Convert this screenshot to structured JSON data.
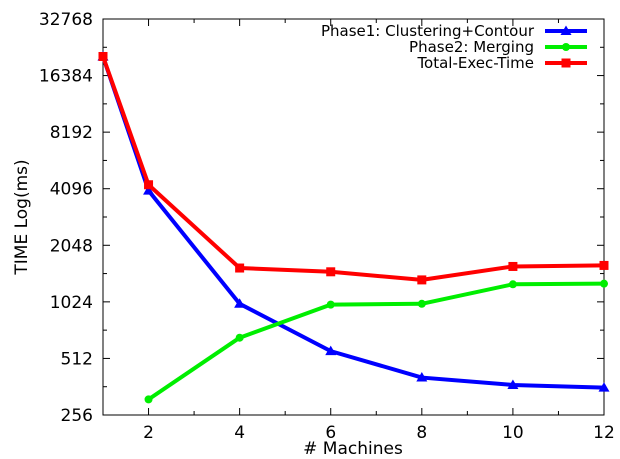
{
  "chart_data": {
    "type": "line",
    "xlabel": "# Machines",
    "ylabel": "TIME Log(ms)",
    "x_scale": "linear",
    "y_scale": "log2",
    "xlim": [
      1,
      12
    ],
    "ylim": [
      256,
      32768
    ],
    "x_ticks": [
      2,
      4,
      6,
      8,
      10,
      12
    ],
    "y_ticks": [
      256,
      512,
      1024,
      2048,
      4096,
      8192,
      16384,
      32768
    ],
    "grid": false,
    "legend_position": "top-right",
    "series": [
      {
        "name": "Phase1: Clustering+Contour",
        "color": "#0000ff",
        "marker": "triangle",
        "points": [
          [
            1,
            20700
          ],
          [
            2,
            4000
          ],
          [
            4,
            1000
          ],
          [
            6,
            560
          ],
          [
            8,
            405
          ],
          [
            10,
            370
          ],
          [
            12,
            358
          ]
        ]
      },
      {
        "name": "Phase2: Merging",
        "color": "#00ee00",
        "marker": "circle",
        "points": [
          [
            2,
            310
          ],
          [
            4,
            660
          ],
          [
            6,
            990
          ],
          [
            8,
            1000
          ],
          [
            10,
            1270
          ],
          [
            12,
            1280
          ]
        ]
      },
      {
        "name": "Total-Exec-Time",
        "color": "#ff0000",
        "marker": "square",
        "points": [
          [
            1,
            20700
          ],
          [
            2,
            4300
          ],
          [
            4,
            1550
          ],
          [
            6,
            1480
          ],
          [
            8,
            1340
          ],
          [
            10,
            1580
          ],
          [
            12,
            1600
          ]
        ]
      }
    ]
  }
}
